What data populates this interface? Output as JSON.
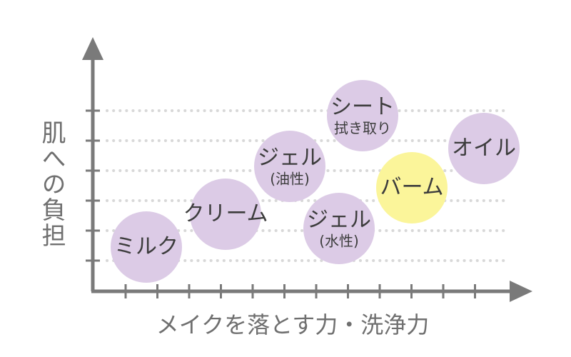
{
  "diagram": {
    "y_axis_label": "肌への負担",
    "x_axis_label": "メイクを落とす力・洗浄力",
    "colors": {
      "bubble": "#dccbe6",
      "highlight": "#fbf59a",
      "axis": "#7a7a7a",
      "gridline": "#d8d8d8",
      "label_text": "#6f6f6f"
    },
    "bubbles": [
      {
        "id": "milk",
        "label": "ミルク",
        "sub": "",
        "highlight": false
      },
      {
        "id": "cream",
        "label": "クリーム",
        "sub": "",
        "highlight": false
      },
      {
        "id": "gel-oil",
        "label": "ジェル",
        "sub": "(油性)",
        "highlight": false
      },
      {
        "id": "gel-water",
        "label": "ジェル",
        "sub": "(水性)",
        "highlight": false
      },
      {
        "id": "sheet",
        "label": "シート",
        "sub": "拭き取り",
        "highlight": false
      },
      {
        "id": "balm",
        "label": "バーム",
        "sub": "",
        "highlight": true
      },
      {
        "id": "oil",
        "label": "オイル",
        "sub": "",
        "highlight": false
      }
    ]
  }
}
